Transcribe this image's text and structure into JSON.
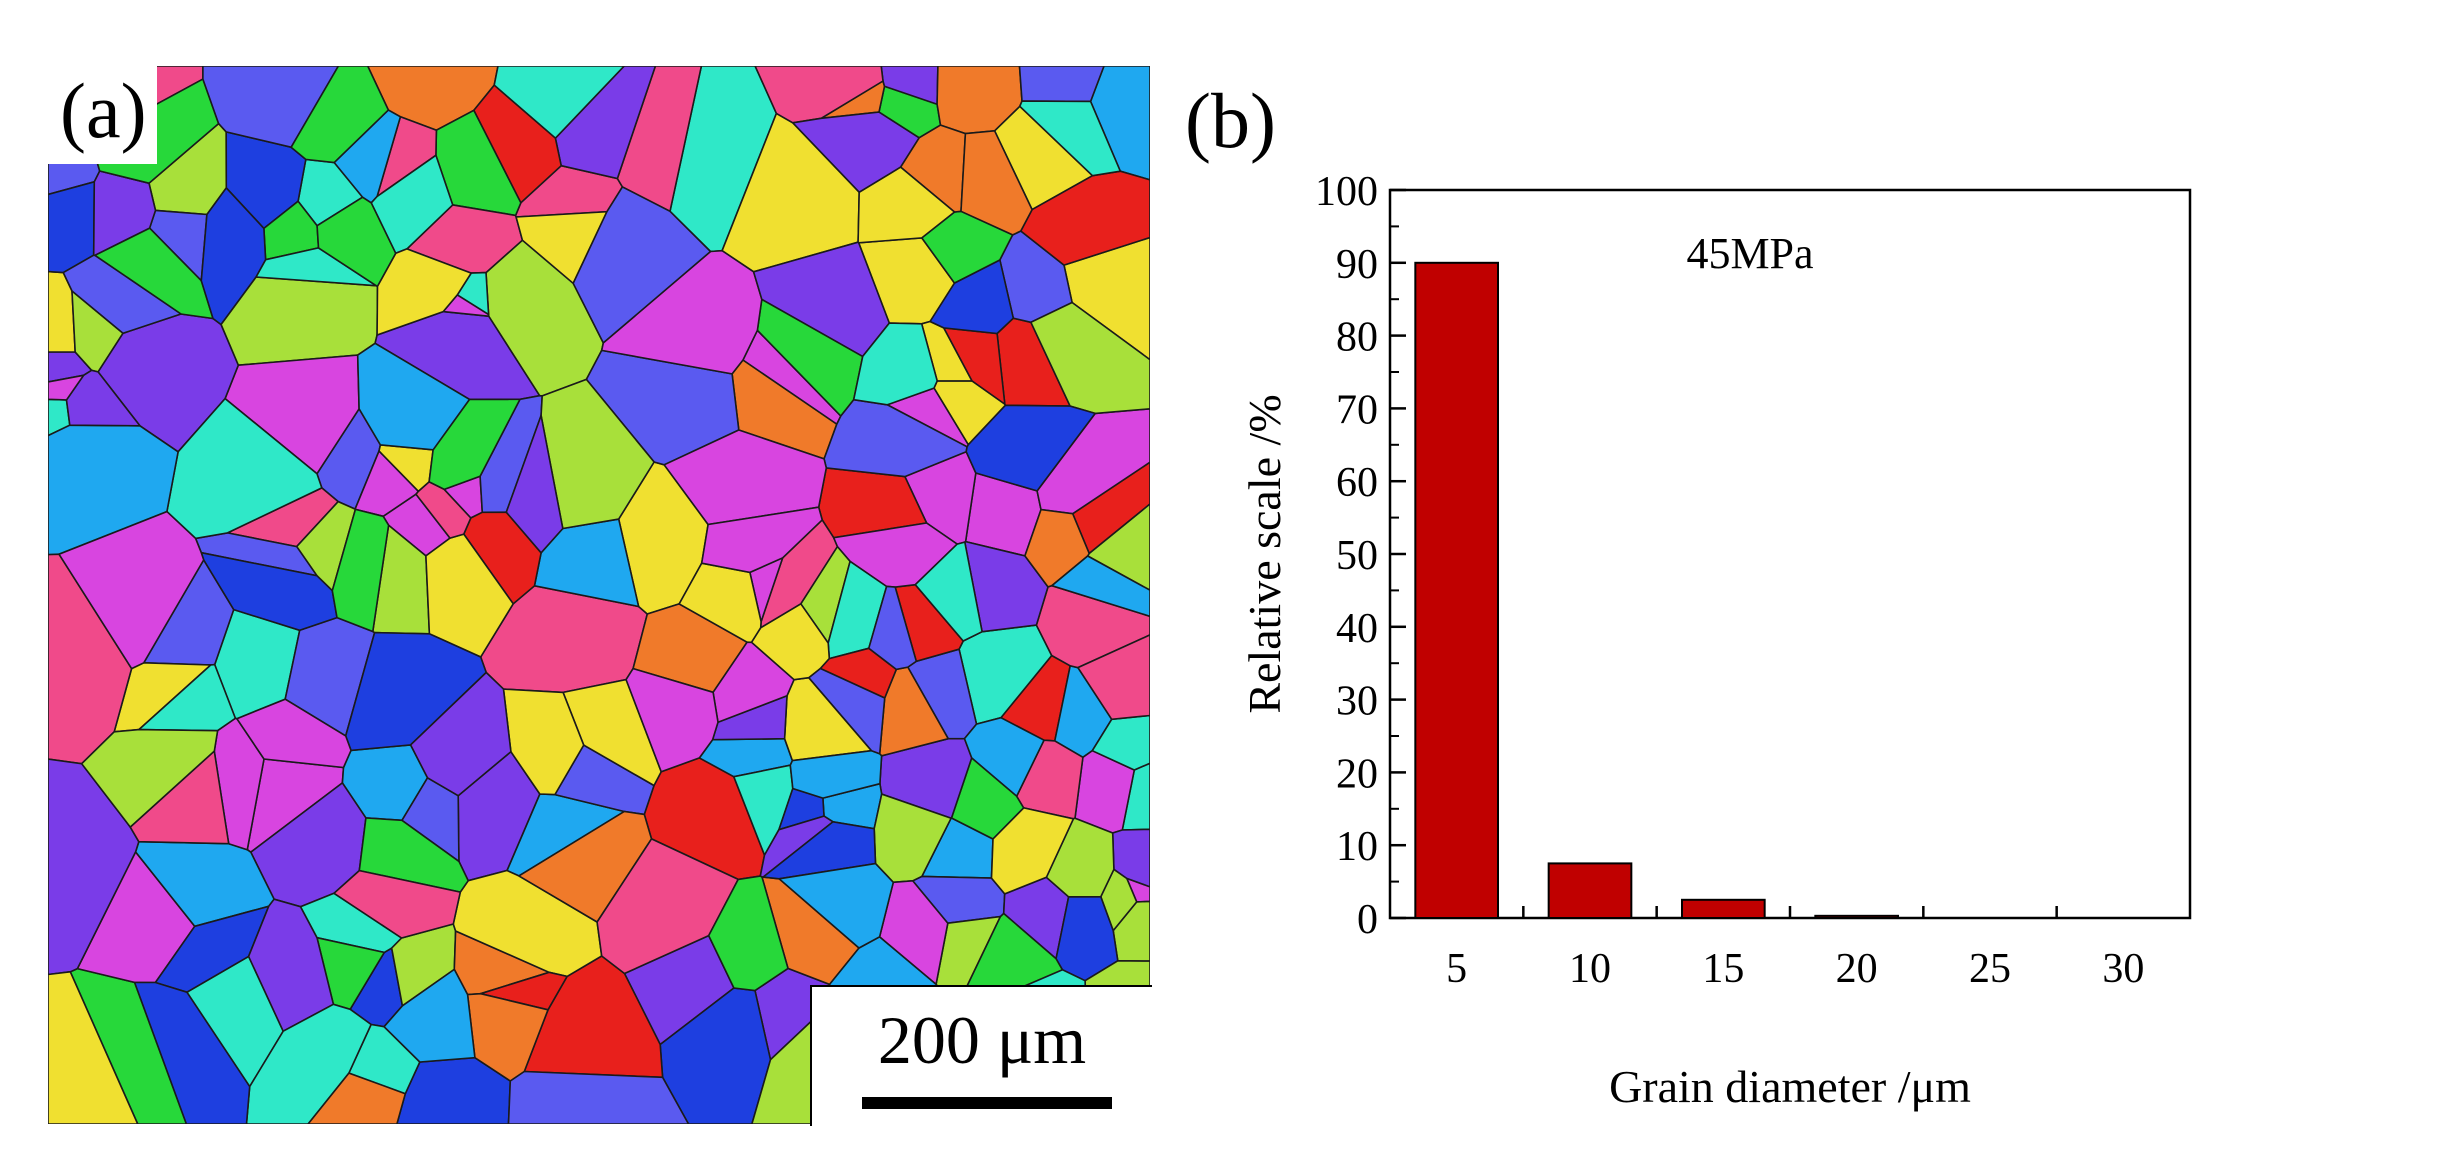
{
  "panel_a": {
    "label": "(a)",
    "scale_bar_text": "200 μm",
    "map_colors": [
      "#e8201c",
      "#27d83a",
      "#1e3fe0",
      "#7a3ce8",
      "#1fa8f0",
      "#d845e0",
      "#f0e030",
      "#f07a2a",
      "#2fe8c8",
      "#a8e03a",
      "#f04a8a",
      "#5a5af0"
    ]
  },
  "panel_b": {
    "label": "(b)",
    "bar_color": "#c00000",
    "chart_data": {
      "type": "bar",
      "title": "",
      "annotations": [
        "45MPa"
      ],
      "categories": [
        "5",
        "10",
        "15",
        "20",
        "25",
        "30"
      ],
      "values": [
        90,
        7.5,
        2.5,
        0.3,
        0,
        0
      ],
      "xlabel": "Grain diameter /μm",
      "ylabel": "Relative scale /%",
      "ylim": [
        0,
        100
      ],
      "yticks": [
        "0",
        "10",
        "20",
        "30",
        "40",
        "50",
        "60",
        "70",
        "80",
        "90",
        "100"
      ],
      "grid": false
    }
  }
}
